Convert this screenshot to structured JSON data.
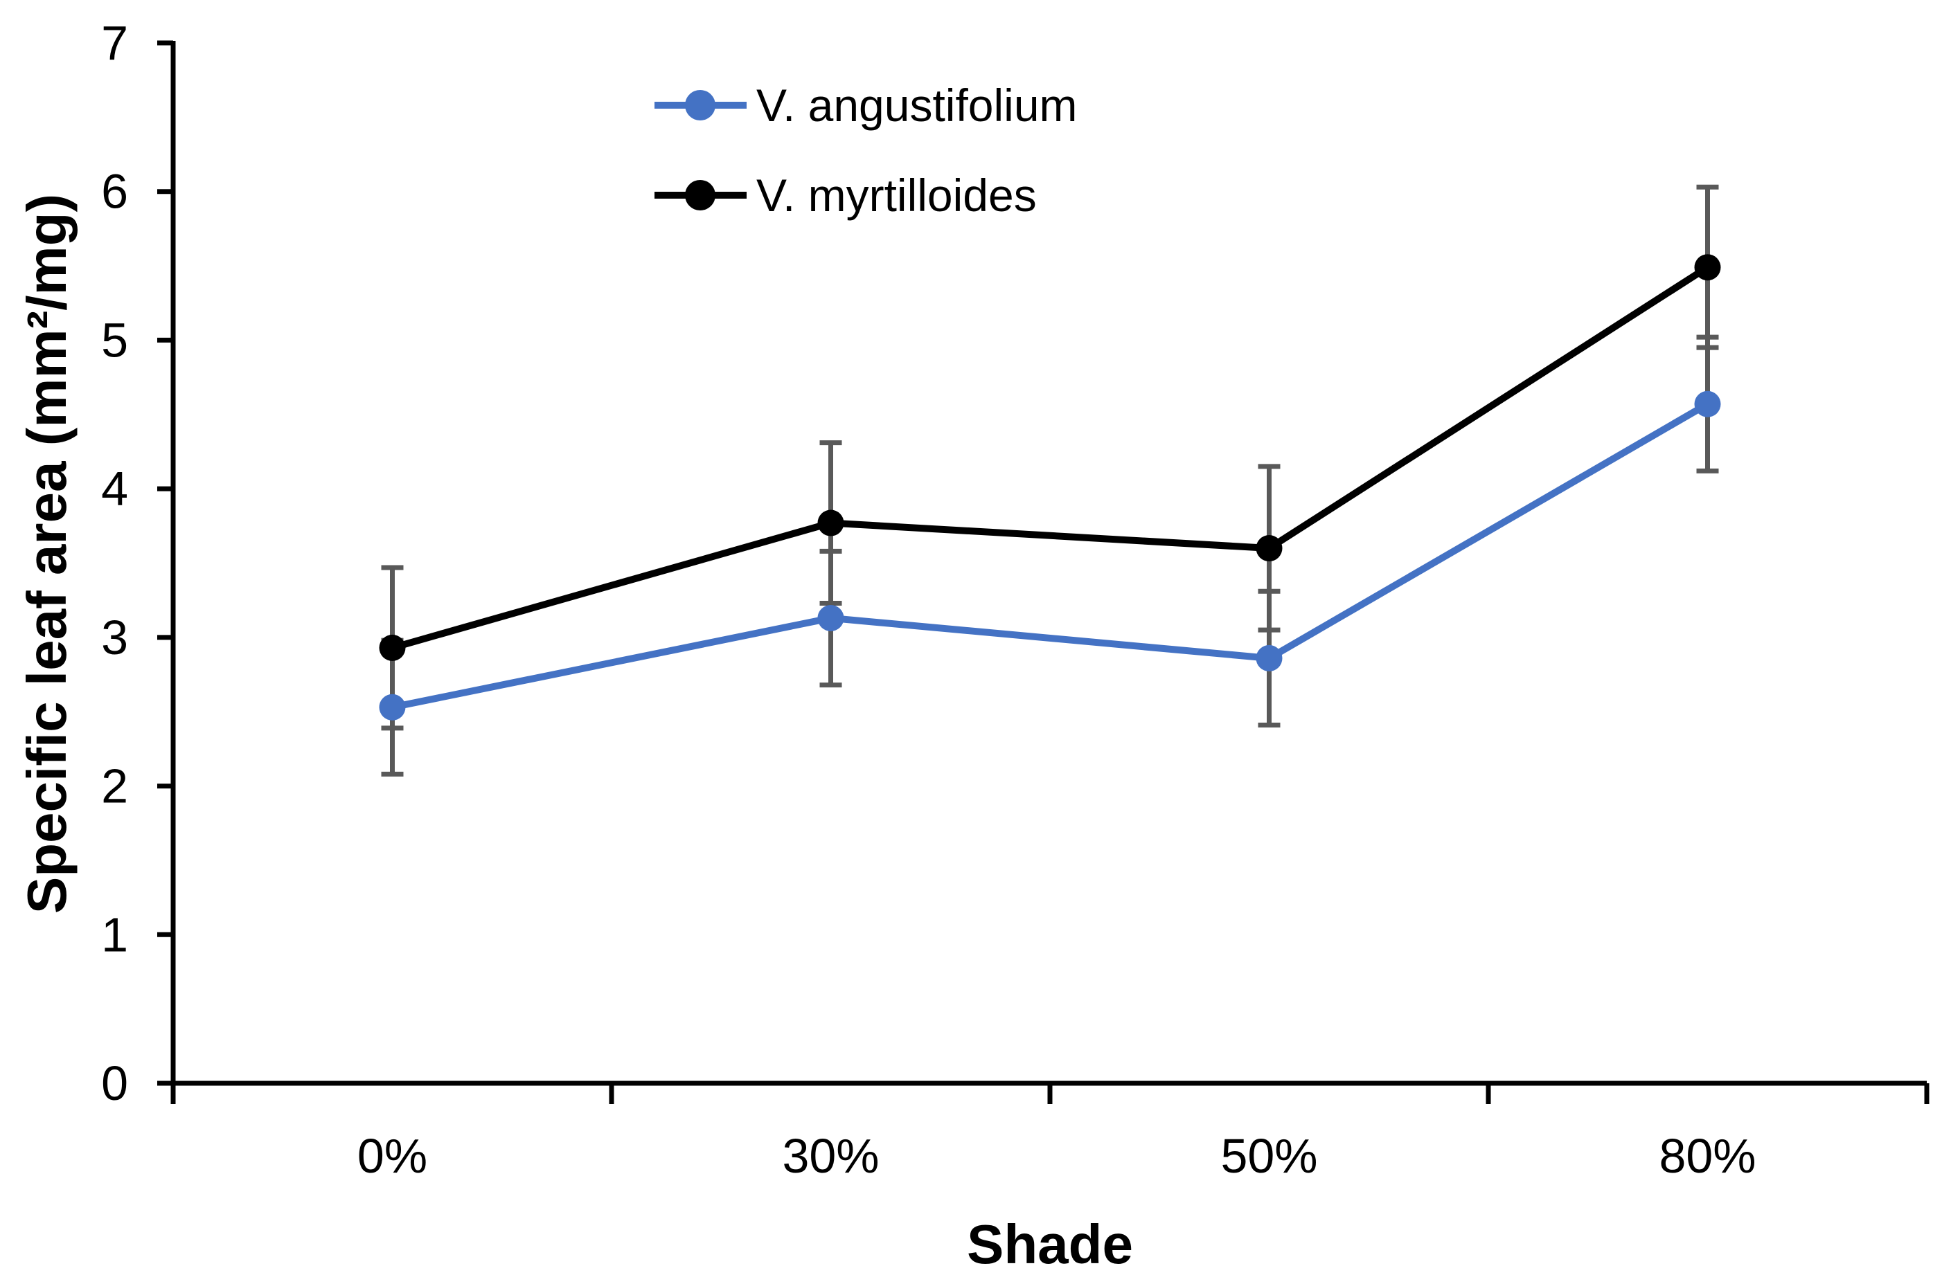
{
  "chart_data": {
    "type": "line",
    "title": "",
    "xlabel": "Shade",
    "ylabel": "Specific leaf area (mm²/mg)",
    "categories": [
      "0%",
      "30%",
      "50%",
      "80%"
    ],
    "y_axis": {
      "min": 0,
      "max": 7,
      "step": 1,
      "ticks": [
        0,
        1,
        2,
        3,
        4,
        5,
        6,
        7
      ]
    },
    "series": [
      {
        "name": "V. angustifolium",
        "color": "#4472C4",
        "values": [
          2.53,
          3.13,
          2.86,
          4.57
        ],
        "error": [
          0.45,
          0.45,
          0.45,
          0.45
        ]
      },
      {
        "name": "V. myrtilloides",
        "color": "#000000",
        "values": [
          2.93,
          3.77,
          3.6,
          5.49
        ],
        "error": [
          0.54,
          0.54,
          0.55,
          0.54
        ]
      }
    ],
    "error_bar_color": "#595959",
    "axis_color": "#000000",
    "grid": "off",
    "legend_position": "top-center-inside",
    "ylim": [
      0,
      7
    ]
  }
}
